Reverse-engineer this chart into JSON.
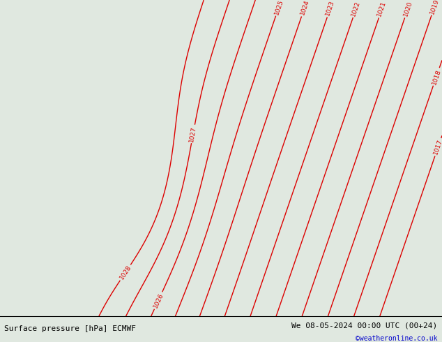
{
  "title_left": "Surface pressure [hPa] ECMWF",
  "title_right": "We 08-05-2024 00:00 UTC (00+24)",
  "credit": "©weatheronline.co.uk",
  "bg_color_sea": "#d8e8d8",
  "land_color": "#c0e8a0",
  "coast_color": "#909090",
  "isobar_color": "#dd0000",
  "font_size_labels": 7,
  "font_size_bottom": 8,
  "pressure_levels": [
    1017,
    1018,
    1019,
    1020,
    1021,
    1022,
    1023,
    1024,
    1025,
    1026,
    1027,
    1028
  ],
  "lon_min": -11,
  "lon_max": 20,
  "lat_min": 48,
  "lat_max": 62
}
